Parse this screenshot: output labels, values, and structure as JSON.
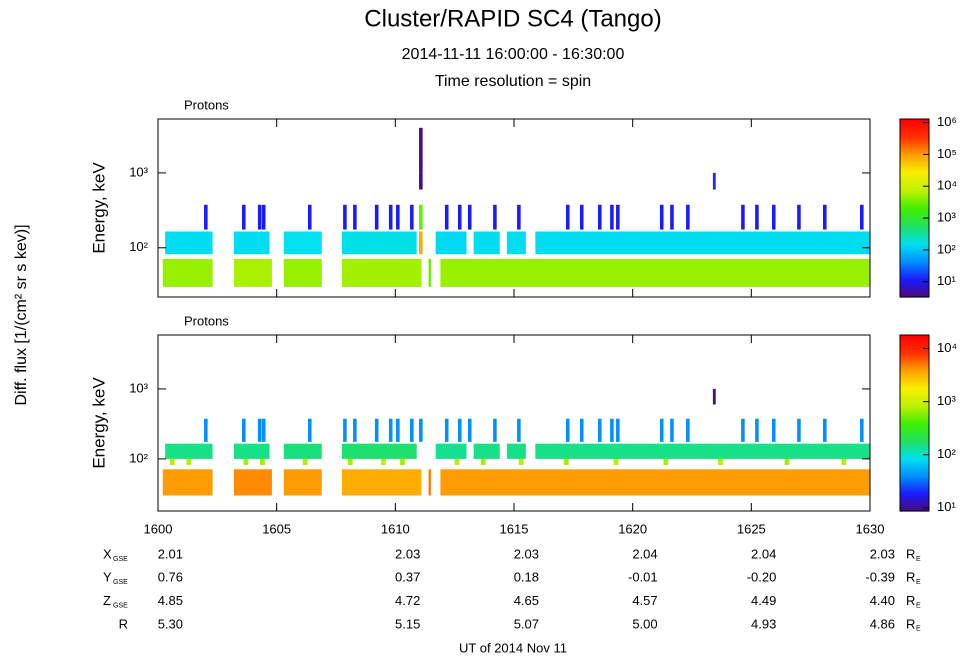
{
  "header": {
    "title": "Cluster/RAPID SC4 (Tango)",
    "subtitle": "2014-11-11 16:00:00 - 16:30:00",
    "resolution": "Time resolution = spin"
  },
  "side_label": "Diff. flux [1/(cm² sr s kev)]",
  "chart_data": [
    {
      "type": "spectrogram",
      "title": "Protons",
      "y_label": "Energy, keV",
      "ylog": true,
      "zlog": true,
      "xlim": [
        0,
        30
      ],
      "xticks": [
        {
          "value": 0,
          "label": "1600"
        },
        {
          "value": 5,
          "label": "1605"
        },
        {
          "value": 10,
          "label": "1610"
        },
        {
          "value": 15,
          "label": "1615"
        },
        {
          "value": 20,
          "label": "1620"
        },
        {
          "value": 25,
          "label": "1625"
        },
        {
          "value": 30,
          "label": "1630"
        }
      ],
      "ylim": [
        22,
        5250
      ],
      "yticks": [
        {
          "value": 100,
          "label": "10²"
        },
        {
          "value": 1000,
          "label": "10³"
        }
      ],
      "zlim": [
        3.3,
        1300000
      ],
      "zticks": [
        {
          "value": 10,
          "label": "10¹"
        },
        {
          "value": 100,
          "label": "10²"
        },
        {
          "value": 1000,
          "label": "10³"
        },
        {
          "value": 10000,
          "label": "10⁴"
        },
        {
          "value": 100000,
          "label": "10⁵"
        },
        {
          "value": 1000000,
          "label": "10⁶"
        }
      ],
      "colormap": [
        "#4b0a7a",
        "#1a1aff",
        "#0090ff",
        "#00e0f0",
        "#20e060",
        "#40f000",
        "#c0f000",
        "#f8f000",
        "#ffa000",
        "#ff3000",
        "#ff0000"
      ],
      "channels": [
        {
          "energy": [
            30,
            71
          ],
          "segments": [
            [
              0.2,
              2.3,
              5000
            ],
            [
              3.2,
              4.8,
              6000
            ],
            [
              5.3,
              6.9,
              5000
            ],
            [
              7.75,
              11.1,
              5500
            ],
            [
              11.4,
              11.5,
              3000
            ],
            [
              11.9,
              30,
              5000
            ]
          ]
        },
        {
          "energy": [
            82,
            165
          ],
          "segments": [
            [
              0.3,
              2.3,
              150
            ],
            [
              3.2,
              4.7,
              150
            ],
            [
              5.3,
              6.9,
              160
            ],
            [
              7.75,
              10.9,
              170
            ],
            [
              11.0,
              11.15,
              80000
            ],
            [
              11.7,
              13.0,
              140
            ],
            [
              13.3,
              14.4,
              150
            ],
            [
              14.7,
              15.5,
              150
            ],
            [
              15.9,
              30,
              150
            ]
          ]
        },
        {
          "energy": [
            175,
            375
          ],
          "segments": [
            [
              1.94,
              2.09,
              12
            ],
            [
              3.54,
              3.69,
              12
            ],
            [
              4.21,
              4.36,
              12
            ],
            [
              4.38,
              4.53,
              12
            ],
            [
              6.32,
              6.47,
              12
            ],
            [
              7.8,
              7.95,
              12
            ],
            [
              8.22,
              8.37,
              12
            ],
            [
              9.14,
              9.29,
              12
            ],
            [
              9.73,
              9.88,
              12
            ],
            [
              10.03,
              10.18,
              12
            ],
            [
              10.62,
              10.77,
              12
            ],
            [
              11.0,
              11.15,
              3000
            ],
            [
              12.09,
              12.24,
              12
            ],
            [
              12.64,
              12.79,
              12
            ],
            [
              13.06,
              13.21,
              12
            ],
            [
              14.12,
              14.27,
              12
            ],
            [
              15.13,
              15.28,
              12
            ],
            [
              17.19,
              17.34,
              12
            ],
            [
              17.78,
              17.93,
              12
            ],
            [
              18.54,
              18.69,
              12
            ],
            [
              19.05,
              19.2,
              12
            ],
            [
              19.3,
              19.45,
              12
            ],
            [
              21.15,
              21.3,
              12
            ],
            [
              21.58,
              21.73,
              12
            ],
            [
              22.25,
              22.4,
              12
            ],
            [
              24.57,
              24.72,
              12
            ],
            [
              25.16,
              25.31,
              12
            ],
            [
              25.87,
              26.02,
              12
            ],
            [
              26.93,
              27.08,
              12
            ],
            [
              28.02,
              28.17,
              12
            ],
            [
              29.58,
              29.73,
              12
            ]
          ]
        },
        {
          "energy": [
            600,
            1000
          ],
          "segments": [
            [
              11.0,
              11.15,
              4
            ],
            [
              23.38,
              23.5,
              15
            ]
          ]
        },
        {
          "energy": [
            1000,
            4000
          ],
          "segments": [
            [
              11.0,
              11.15,
              3.5
            ]
          ]
        }
      ]
    },
    {
      "type": "spectrogram",
      "title": "Protons",
      "y_label": "Energy, keV",
      "ylog": true,
      "zlog": true,
      "x_label": "UT of 2014 Nov 11",
      "xlim": [
        0,
        30
      ],
      "xticks": [
        {
          "value": 0,
          "label": "1600"
        },
        {
          "value": 5,
          "label": "1605"
        },
        {
          "value": 10,
          "label": "1610"
        },
        {
          "value": 15,
          "label": "1615"
        },
        {
          "value": 20,
          "label": "1620"
        },
        {
          "value": 25,
          "label": "1625"
        },
        {
          "value": 30,
          "label": "1630"
        }
      ],
      "ylim": [
        18,
        5900
      ],
      "yticks": [
        {
          "value": 100,
          "label": "10²"
        },
        {
          "value": 1000,
          "label": "10³"
        }
      ],
      "zlim": [
        8.7,
        18000
      ],
      "zticks": [
        {
          "value": 10,
          "label": "10¹"
        },
        {
          "value": 100,
          "label": "10²"
        },
        {
          "value": 1000,
          "label": "10³"
        },
        {
          "value": 10000,
          "label": "10⁴"
        }
      ],
      "colormap": [
        "#4b0a7a",
        "#1a1aff",
        "#0090ff",
        "#00e0f0",
        "#20e060",
        "#40f000",
        "#c0f000",
        "#f8f000",
        "#ffa000",
        "#ff3000",
        "#ff0000"
      ],
      "channels": [
        {
          "energy": [
            30,
            71
          ],
          "segments": [
            [
              0.2,
              2.3,
              4000
            ],
            [
              3.2,
              4.8,
              4500
            ],
            [
              5.3,
              6.9,
              4000
            ],
            [
              7.75,
              11.1,
              3500
            ],
            [
              11.4,
              11.5,
              5000
            ],
            [
              11.9,
              30,
              4000
            ]
          ]
        },
        {
          "energy": [
            82,
            100
          ],
          "segments": [
            [
              0.5,
              0.7,
              800
            ],
            [
              1.2,
              1.4,
              800
            ],
            [
              3.6,
              3.8,
              700
            ],
            [
              4.3,
              4.5,
              700
            ],
            [
              6.1,
              6.3,
              800
            ],
            [
              8.0,
              8.2,
              700
            ],
            [
              9.4,
              9.6,
              800
            ],
            [
              10.2,
              10.4,
              700
            ],
            [
              12.5,
              12.7,
              800
            ],
            [
              13.6,
              13.8,
              700
            ],
            [
              15.2,
              15.4,
              800
            ],
            [
              17.1,
              17.3,
              700
            ],
            [
              19.2,
              19.4,
              800
            ],
            [
              21.3,
              21.5,
              700
            ],
            [
              23.6,
              23.8,
              800
            ],
            [
              26.4,
              26.6,
              700
            ],
            [
              28.8,
              29.0,
              800
            ]
          ]
        },
        {
          "energy": [
            100,
            165
          ],
          "segments": [
            [
              0.3,
              2.3,
              150
            ],
            [
              3.2,
              4.7,
              150
            ],
            [
              5.3,
              6.9,
              160
            ],
            [
              7.75,
              10.9,
              170
            ],
            [
              11.7,
              13.0,
              140
            ],
            [
              13.3,
              14.4,
              150
            ],
            [
              14.7,
              15.5,
              150
            ],
            [
              15.9,
              30,
              150
            ]
          ]
        },
        {
          "energy": [
            175,
            375
          ],
          "segments": [
            [
              1.94,
              2.09,
              40
            ],
            [
              3.54,
              3.69,
              40
            ],
            [
              4.21,
              4.36,
              40
            ],
            [
              4.38,
              4.53,
              40
            ],
            [
              6.32,
              6.47,
              40
            ],
            [
              7.8,
              7.95,
              40
            ],
            [
              8.22,
              8.37,
              40
            ],
            [
              9.14,
              9.29,
              40
            ],
            [
              9.73,
              9.88,
              40
            ],
            [
              10.03,
              10.18,
              40
            ],
            [
              10.62,
              10.77,
              40
            ],
            [
              11.0,
              11.15,
              40
            ],
            [
              12.09,
              12.24,
              40
            ],
            [
              12.64,
              12.79,
              40
            ],
            [
              13.06,
              13.21,
              40
            ],
            [
              14.12,
              14.27,
              40
            ],
            [
              15.13,
              15.28,
              40
            ],
            [
              17.19,
              17.34,
              40
            ],
            [
              17.78,
              17.93,
              40
            ],
            [
              18.54,
              18.69,
              40
            ],
            [
              19.05,
              19.2,
              40
            ],
            [
              19.3,
              19.45,
              40
            ],
            [
              21.15,
              21.3,
              40
            ],
            [
              21.58,
              21.73,
              40
            ],
            [
              22.25,
              22.4,
              40
            ],
            [
              24.57,
              24.72,
              40
            ],
            [
              25.16,
              25.31,
              40
            ],
            [
              25.87,
              26.02,
              40
            ],
            [
              26.93,
              27.08,
              40
            ],
            [
              28.02,
              28.17,
              40
            ],
            [
              29.58,
              29.73,
              40
            ]
          ]
        },
        {
          "energy": [
            600,
            1000
          ],
          "segments": [
            [
              23.38,
              23.5,
              10
            ]
          ]
        }
      ]
    }
  ],
  "orbit": {
    "unit": "R",
    "unit_sub": "E",
    "rows": [
      {
        "label": "X",
        "sub": "GSE",
        "values": [
          "2.01",
          "2.03",
          "2.03",
          "2.04",
          "2.04",
          "2.03"
        ]
      },
      {
        "label": "Y",
        "sub": "GSE",
        "values": [
          "0.76",
          "0.37",
          "0.18",
          "-0.01",
          "-0.20",
          "-0.39"
        ]
      },
      {
        "label": "Z",
        "sub": "GSE",
        "values": [
          "4.85",
          "4.72",
          "4.65",
          "4.57",
          "4.49",
          "4.40"
        ]
      },
      {
        "label": "R",
        "values": [
          "5.30",
          "5.15",
          "5.07",
          "5.00",
          "4.93",
          "4.86"
        ]
      }
    ]
  }
}
